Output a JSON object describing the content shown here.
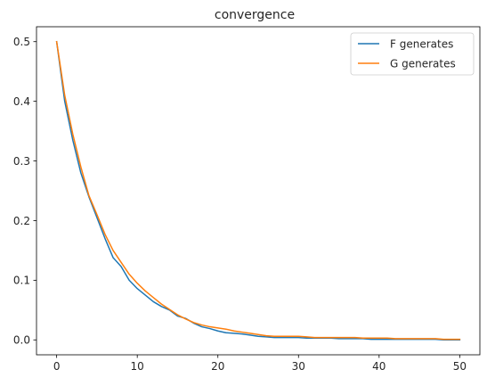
{
  "chart_data": {
    "type": "line",
    "title": "convergence",
    "xlabel": "",
    "ylabel": "",
    "xlim": [
      -2.5,
      52.5
    ],
    "ylim": [
      -0.025,
      0.525
    ],
    "xticks": [
      0,
      10,
      20,
      30,
      40,
      50
    ],
    "yticks": [
      0.0,
      0.1,
      0.2,
      0.3,
      0.4,
      0.5
    ],
    "ytick_labels": [
      "0.0",
      "0.1",
      "0.2",
      "0.3",
      "0.4",
      "0.5"
    ],
    "grid": false,
    "legend_position": "top-right",
    "x": [
      0,
      1,
      2,
      3,
      4,
      5,
      6,
      7,
      8,
      9,
      10,
      11,
      12,
      13,
      14,
      15,
      16,
      17,
      18,
      19,
      20,
      21,
      22,
      23,
      24,
      25,
      26,
      27,
      28,
      29,
      30,
      31,
      32,
      33,
      34,
      35,
      36,
      37,
      38,
      39,
      40,
      41,
      42,
      43,
      44,
      45,
      46,
      47,
      48,
      49,
      50
    ],
    "series": [
      {
        "name": "F generates",
        "color": "#1f77b4",
        "values": [
          0.5,
          0.4,
          0.335,
          0.28,
          0.24,
          0.205,
          0.17,
          0.138,
          0.123,
          0.1,
          0.086,
          0.075,
          0.064,
          0.056,
          0.05,
          0.04,
          0.036,
          0.028,
          0.022,
          0.019,
          0.015,
          0.012,
          0.011,
          0.01,
          0.008,
          0.006,
          0.005,
          0.004,
          0.004,
          0.004,
          0.004,
          0.003,
          0.003,
          0.003,
          0.003,
          0.002,
          0.002,
          0.002,
          0.002,
          0.001,
          0.001,
          0.001,
          0.001,
          0.001,
          0.001,
          0.001,
          0.001,
          0.001,
          0.0,
          0.0,
          0.0
        ]
      },
      {
        "name": "G generates",
        "color": "#ff7f0e",
        "values": [
          0.5,
          0.41,
          0.345,
          0.29,
          0.242,
          0.21,
          0.177,
          0.15,
          0.13,
          0.11,
          0.095,
          0.082,
          0.071,
          0.06,
          0.051,
          0.042,
          0.035,
          0.029,
          0.025,
          0.022,
          0.02,
          0.018,
          0.015,
          0.013,
          0.011,
          0.009,
          0.007,
          0.006,
          0.006,
          0.006,
          0.006,
          0.005,
          0.004,
          0.004,
          0.004,
          0.004,
          0.004,
          0.004,
          0.003,
          0.003,
          0.003,
          0.003,
          0.002,
          0.002,
          0.002,
          0.002,
          0.002,
          0.002,
          0.001,
          0.001,
          0.001
        ]
      }
    ]
  }
}
